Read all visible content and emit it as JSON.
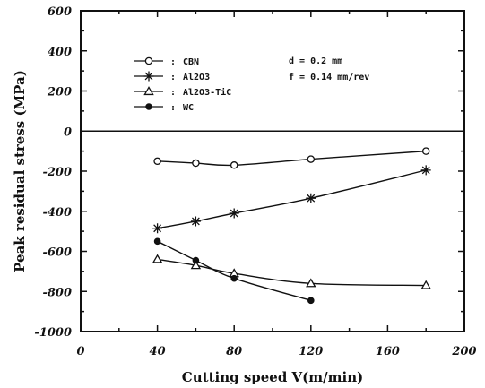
{
  "chart_data": {
    "type": "line",
    "xlabel": "Cutting speed V(m/min)",
    "ylabel": "Peak residual stress (MPa)",
    "xlim": [
      0,
      200
    ],
    "ylim": [
      -1000,
      600
    ],
    "xticks": [
      "0",
      "40",
      "80",
      "120",
      "160",
      "200"
    ],
    "yticks": [
      "600",
      "400",
      "200",
      "0",
      "-200",
      "-400",
      "-600",
      "-800",
      "-1000"
    ],
    "zero_line": true,
    "grid": false,
    "legend_position": "top-left",
    "annotations": [
      "d = 0.2 mm",
      "f = 0.14 mm/rev"
    ],
    "series": [
      {
        "name": "CBN",
        "marker": "open-circle",
        "x": [
          40,
          60,
          80,
          120,
          180
        ],
        "y": [
          -150,
          -160,
          -170,
          -140,
          -100
        ]
      },
      {
        "name": "Al2O3",
        "marker": "asterisk",
        "x": [
          40,
          60,
          80,
          120,
          180
        ],
        "y": [
          -485,
          -450,
          -410,
          -335,
          -195
        ]
      },
      {
        "name": "Al2O3-TiC",
        "marker": "open-triangle",
        "x": [
          40,
          60,
          80,
          120,
          180
        ],
        "y": [
          -640,
          -670,
          -710,
          -760,
          -770
        ]
      },
      {
        "name": "WC",
        "marker": "filled-circle",
        "x": [
          40,
          60,
          80,
          120
        ],
        "y": [
          -550,
          -645,
          -735,
          -845
        ]
      }
    ]
  }
}
